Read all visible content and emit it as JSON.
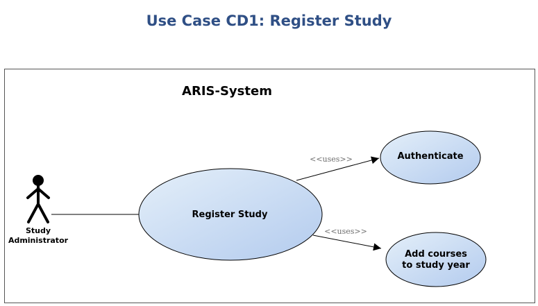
{
  "title": "Use Case CD1: Register Study",
  "colors": {
    "title": "#2f4f85",
    "usecase_fill_light": "#e4eff9",
    "usecase_fill_dark": "#b3cbee",
    "usecase_stroke": "#000000",
    "boundary_stroke": "#555555"
  },
  "system": {
    "name": "ARIS-System"
  },
  "actor": {
    "label_line1": "Study",
    "label_line2": "Administrator",
    "icon": "stick-figure-icon"
  },
  "use_cases": {
    "register": {
      "label": "Register Study"
    },
    "authenticate": {
      "label": "Authenticate"
    },
    "add_courses": {
      "label_line1": "Add courses",
      "label_line2": "to study year"
    }
  },
  "relations": {
    "uses_authenticate": {
      "stereotype": "<<uses>>"
    },
    "uses_add_courses": {
      "stereotype": "<<uses>>"
    }
  }
}
